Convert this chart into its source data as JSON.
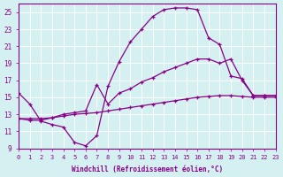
{
  "xlabel": "Windchill (Refroidissement éolien,°C)",
  "background_color": "#d4f0f0",
  "line_color": "#880088",
  "xlim": [
    0,
    23
  ],
  "ylim": [
    9,
    26
  ],
  "yticks": [
    9,
    11,
    13,
    15,
    17,
    19,
    21,
    23,
    25
  ],
  "xticks": [
    0,
    1,
    2,
    3,
    4,
    5,
    6,
    7,
    8,
    9,
    10,
    11,
    12,
    13,
    14,
    15,
    16,
    17,
    18,
    19,
    20,
    21,
    22,
    23
  ],
  "series": [
    {
      "x": [
        0,
        1,
        2,
        3,
        4,
        5,
        6,
        7,
        8,
        9,
        10,
        11,
        12,
        13,
        14,
        15,
        16,
        17,
        18,
        19,
        20,
        21,
        22,
        23
      ],
      "y": [
        15.5,
        14.2,
        12.2,
        11.8,
        11.5,
        9.7,
        9.3,
        10.5,
        16.3,
        19.2,
        21.5,
        23.0,
        24.5,
        25.3,
        25.5,
        25.5,
        25.3,
        22.0,
        21.2,
        17.5,
        17.2,
        15.2,
        15.2,
        15.2
      ]
    },
    {
      "x": [
        0,
        1,
        2,
        3,
        4,
        5,
        6,
        7,
        8,
        9,
        10,
        11,
        12,
        13,
        14,
        15,
        16,
        17,
        18,
        19,
        20,
        21,
        22,
        23
      ],
      "y": [
        12.5,
        12.3,
        12.3,
        12.6,
        13.0,
        13.2,
        13.4,
        16.5,
        14.2,
        15.5,
        16.0,
        16.8,
        17.3,
        18.0,
        18.5,
        19.0,
        19.5,
        19.5,
        19.0,
        19.5,
        17.0,
        15.2,
        15.2,
        15.2
      ]
    },
    {
      "x": [
        0,
        1,
        2,
        3,
        4,
        5,
        6,
        7,
        8,
        9,
        10,
        11,
        12,
        13,
        14,
        15,
        16,
        17,
        18,
        19,
        20,
        21,
        22,
        23
      ],
      "y": [
        12.5,
        12.5,
        12.5,
        12.6,
        12.8,
        13.0,
        13.1,
        13.2,
        13.4,
        13.6,
        13.8,
        14.0,
        14.2,
        14.4,
        14.6,
        14.8,
        15.0,
        15.1,
        15.2,
        15.2,
        15.1,
        15.0,
        15.0,
        15.0
      ]
    }
  ]
}
